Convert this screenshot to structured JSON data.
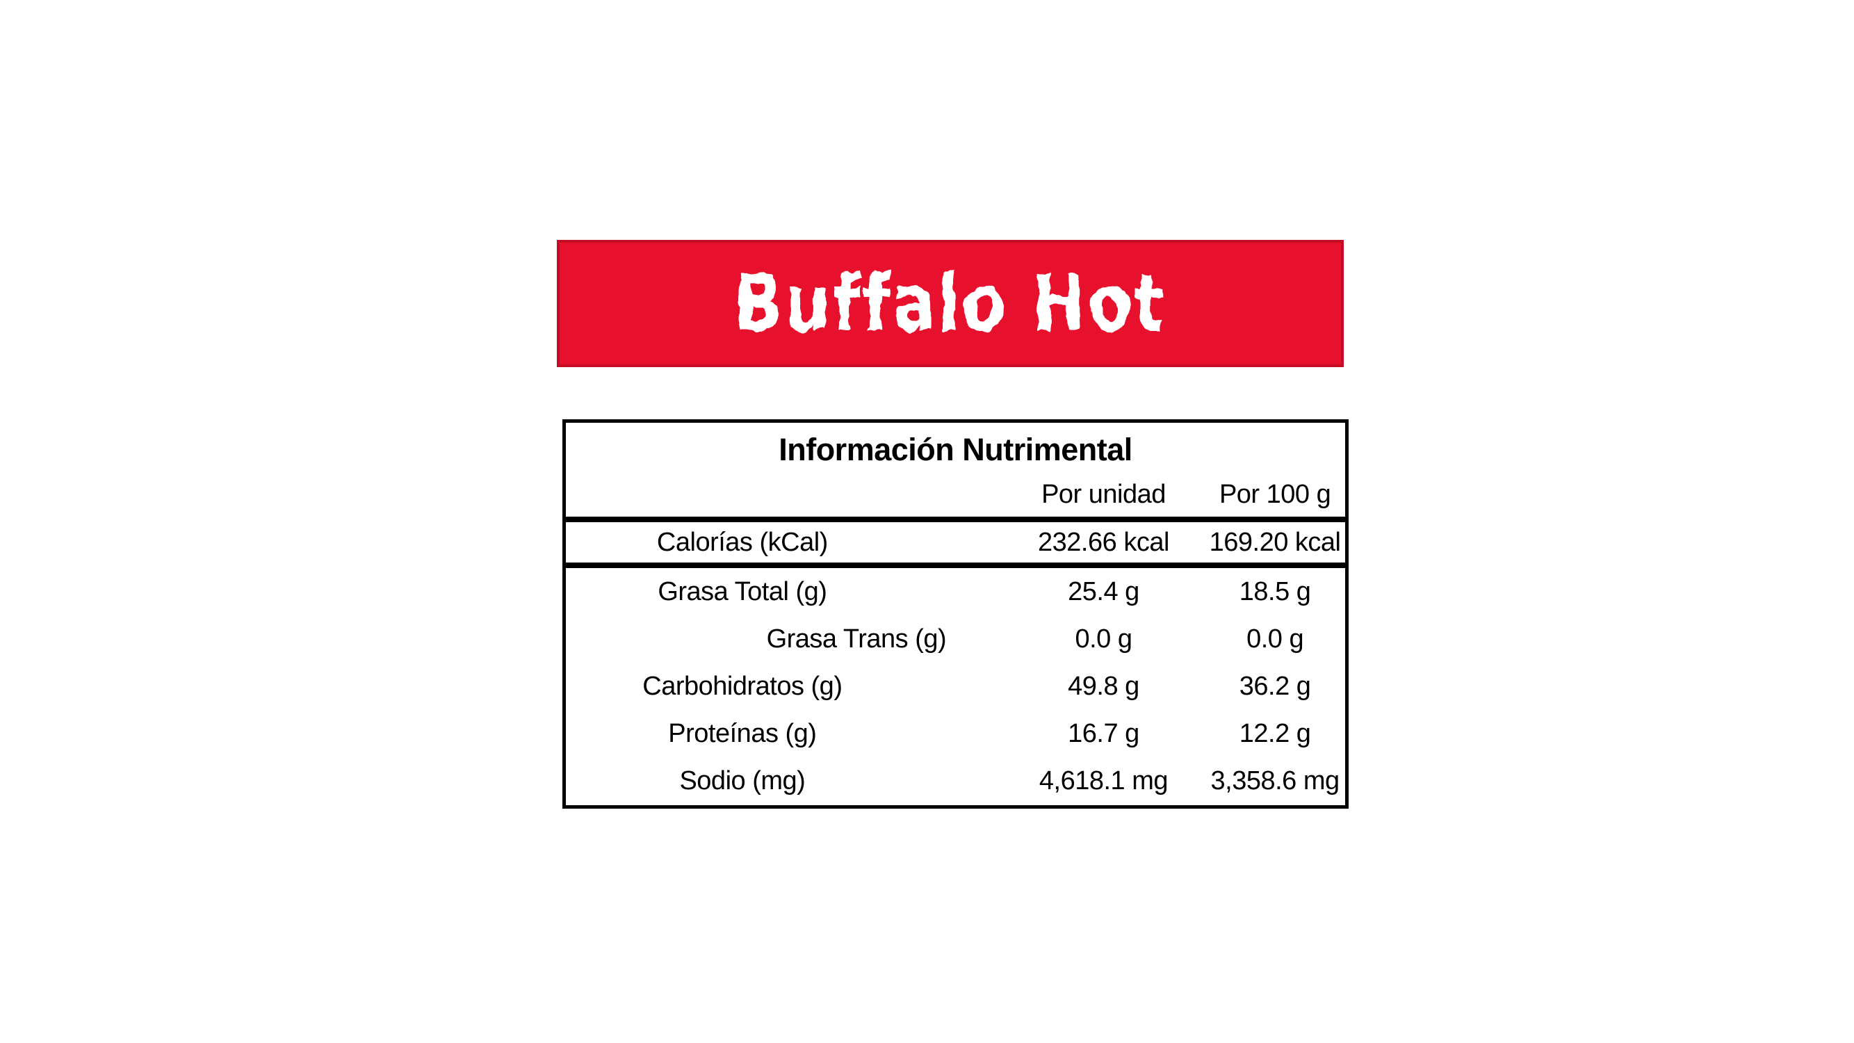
{
  "banner": {
    "title": "Buffalo Hot",
    "bg_color": "#e8112d",
    "border_color": "#c30e25",
    "text_color": "#ffffff"
  },
  "table": {
    "title": "Información Nutrimental",
    "columns": [
      "Por unidad",
      "Por 100 g"
    ],
    "rows": [
      {
        "label": "Calorías (kCal)",
        "per_unit": "232.66 kcal",
        "per_100g": "169.20 kcal"
      },
      {
        "label": "Grasa Total (g)",
        "per_unit": "25.4 g",
        "per_100g": "18.5 g"
      },
      {
        "label": "Grasa Trans (g)",
        "per_unit": "0.0 g",
        "per_100g": "0.0 g"
      },
      {
        "label": "Carbohidratos (g)",
        "per_unit": "49.8 g",
        "per_100g": "36.2 g"
      },
      {
        "label": "Proteínas (g)",
        "per_unit": "16.7 g",
        "per_100g": "12.2 g"
      },
      {
        "label": "Sodio (mg)",
        "per_unit": "4,618.1 mg",
        "per_100g": "3,358.6 mg"
      }
    ]
  }
}
